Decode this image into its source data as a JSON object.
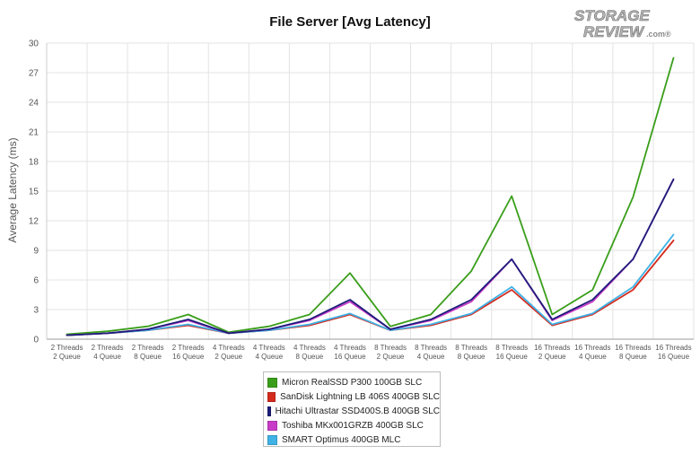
{
  "logo": {
    "line1": "STORAGE",
    "line2": "REVIEW",
    "suffix": ".com®"
  },
  "chart_data": {
    "type": "line",
    "title": "File Server [Avg Latency]",
    "xlabel": "",
    "ylabel": "Average Latency (ms)",
    "ylim": [
      0,
      30
    ],
    "yticks": [
      0,
      3,
      6,
      9,
      12,
      15,
      18,
      21,
      24,
      27,
      30
    ],
    "grid": true,
    "legend_position": "bottom",
    "categories": [
      [
        "2 Threads",
        "2 Queue"
      ],
      [
        "2 Threads",
        "4 Queue"
      ],
      [
        "2 Threads",
        "8 Queue"
      ],
      [
        "2 Threads",
        "16 Queue"
      ],
      [
        "4 Threads",
        "2 Queue"
      ],
      [
        "4 Threads",
        "4 Queue"
      ],
      [
        "4 Threads",
        "8 Queue"
      ],
      [
        "4 Threads",
        "16 Queue"
      ],
      [
        "8 Threads",
        "2 Queue"
      ],
      [
        "8 Threads",
        "4 Queue"
      ],
      [
        "8 Threads",
        "8 Queue"
      ],
      [
        "8 Threads",
        "16 Queue"
      ],
      [
        "16 Threads",
        "2 Queue"
      ],
      [
        "16 Threads",
        "4 Queue"
      ],
      [
        "16 Threads",
        "8 Queue"
      ],
      [
        "16 Threads",
        "16 Queue"
      ]
    ],
    "series": [
      {
        "name": "Micron RealSSD P300 100GB SLC",
        "color": "#3a9e1a",
        "values": [
          0.5,
          0.8,
          1.3,
          2.5,
          0.7,
          1.3,
          2.5,
          6.7,
          1.3,
          2.5,
          6.9,
          14.5,
          2.5,
          5.0,
          14.4,
          28.5
        ]
      },
      {
        "name": "SanDisk Lightning LB 406S 400GB SLC",
        "color": "#d42b1e",
        "values": [
          0.4,
          0.6,
          0.9,
          1.4,
          0.6,
          0.9,
          1.4,
          2.5,
          0.9,
          1.4,
          2.5,
          5.0,
          1.4,
          2.5,
          5.0,
          10.0
        ]
      },
      {
        "name": "Hitachi Ultrastar SSD400S.B 400GB SLC",
        "color": "#1c1c7a",
        "values": [
          0.4,
          0.6,
          1.0,
          2.0,
          0.6,
          1.0,
          2.0,
          4.0,
          1.0,
          2.0,
          4.0,
          8.1,
          2.0,
          4.0,
          8.1,
          16.2
        ]
      },
      {
        "name": "Toshiba MKx001GRZB 400GB SLC",
        "color": "#c83cc8",
        "values": [
          0.4,
          0.6,
          1.0,
          1.9,
          0.6,
          1.0,
          1.9,
          3.8,
          1.0,
          1.9,
          3.8,
          8.1,
          1.9,
          3.8,
          8.1,
          16.2
        ]
      },
      {
        "name": "SMART Optimus 400GB MLC",
        "color": "#3fb2e6",
        "values": [
          0.4,
          0.6,
          0.9,
          1.5,
          0.6,
          0.9,
          1.5,
          2.6,
          0.9,
          1.5,
          2.6,
          5.3,
          1.5,
          2.6,
          5.3,
          10.6
        ]
      }
    ]
  }
}
